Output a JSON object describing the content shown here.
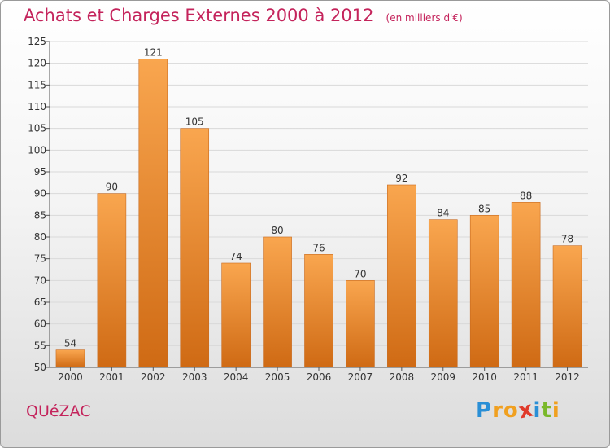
{
  "header": {
    "title": "Achats et Charges Externes 2000 à 2012",
    "unit": "(en milliers d'€)"
  },
  "footer": {
    "town": "QUéZAC",
    "logo_letters": [
      "P",
      "r",
      "o",
      "x",
      "i",
      "t",
      "i"
    ],
    "logo_colors": [
      "#2a8fd6",
      "#f0a020",
      "#f0a020",
      "#e03a2a",
      "#2a8fd6",
      "#7ab82a",
      "#f0a020"
    ]
  },
  "colors": {
    "accent": "#c4235b",
    "bar_top": "#f9a64f",
    "bar_bottom": "#cf6a14",
    "grid": "#d9d9d9",
    "axis": "#555555"
  },
  "chart_data": {
    "type": "bar",
    "title": "Achats et Charges Externes 2000 à 2012",
    "subtitle": "(en milliers d'€)",
    "categories": [
      "2000",
      "2001",
      "2002",
      "2003",
      "2004",
      "2005",
      "2006",
      "2007",
      "2008",
      "2009",
      "2010",
      "2011",
      "2012"
    ],
    "values": [
      54,
      90,
      121,
      105,
      74,
      80,
      76,
      70,
      92,
      84,
      85,
      88,
      78
    ],
    "ylim": [
      50,
      125
    ],
    "yticks": [
      50,
      55,
      60,
      65,
      70,
      75,
      80,
      85,
      90,
      95,
      100,
      105,
      110,
      115,
      120,
      125
    ],
    "grid": true,
    "xlabel": "",
    "ylabel": ""
  }
}
